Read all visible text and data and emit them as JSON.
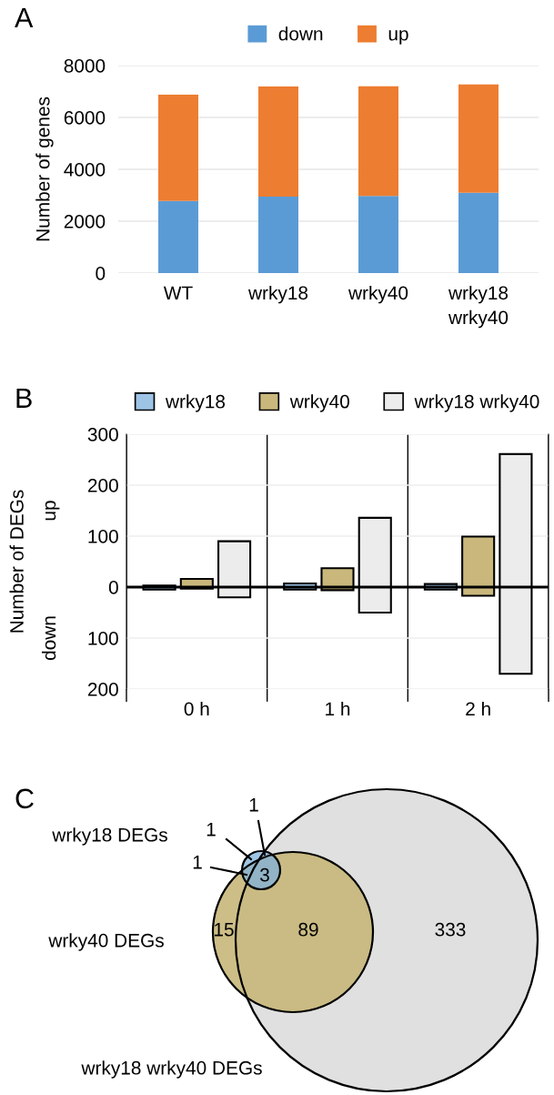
{
  "chart_data": [
    {
      "type": "bar",
      "title": "A",
      "categories": [
        "WT",
        "wrky18",
        "wrky40",
        "wrky18\nwrky40"
      ],
      "stacked": true,
      "ylabel": "Number of genes",
      "ylim": [
        0,
        8000
      ],
      "yticks": [
        0,
        2000,
        4000,
        6000,
        8000
      ],
      "grid": "y",
      "legend": "top",
      "series": [
        {
          "name": "down",
          "color": "#5b9bd5",
          "values": [
            2780,
            2950,
            2970,
            3100
          ]
        },
        {
          "name": "up",
          "color": "#ed7d31",
          "values": [
            4100,
            4240,
            4230,
            4170
          ]
        }
      ]
    },
    {
      "type": "bar",
      "title": "B",
      "categories": [
        "0 h",
        "1 h",
        "2 h"
      ],
      "ylabel": "Number of DEGs",
      "annotations": [
        "up",
        "down"
      ],
      "ylim": [
        -200,
        300
      ],
      "yticks": [
        {
          "value": -200,
          "label": "200"
        },
        {
          "value": -100,
          "label": "100"
        },
        0,
        100,
        200,
        300
      ],
      "grid": true,
      "legend": "top",
      "ref_lines": [
        {
          "axis": "y",
          "value": 0,
          "color": "#000000"
        }
      ],
      "series": [
        {
          "name": "wrky18",
          "color": "#9dc3e6",
          "base": [
            -5,
            -5,
            -5
          ],
          "values": [
            8,
            12,
            11
          ]
        },
        {
          "name": "wrky40",
          "color": "#c9b77c",
          "base": [
            -3,
            -6,
            -17
          ],
          "values": [
            19,
            43,
            116
          ]
        },
        {
          "name": "wrky18 wrky40",
          "color": "#ececec",
          "base": [
            -20,
            -50,
            -170
          ],
          "values": [
            110,
            186,
            431
          ]
        }
      ]
    },
    {
      "type": "other",
      "title": "C",
      "annotations": [
        "wrky18 DEGs",
        "wrky40 DEGs",
        "wrky18 wrky40 DEGs"
      ],
      "colors": [
        "#8fb0c4",
        "#7fb2dc",
        "#8fa3a0",
        "#7f9a98",
        "#c8b77a",
        "#b9a86f",
        "#e0e0e0"
      ],
      "data_labels": true,
      "categories": [
        null,
        null,
        null,
        null,
        null,
        null,
        null
      ],
      "values": [
        1,
        1,
        1,
        3,
        15,
        89,
        333
      ]
    }
  ]
}
